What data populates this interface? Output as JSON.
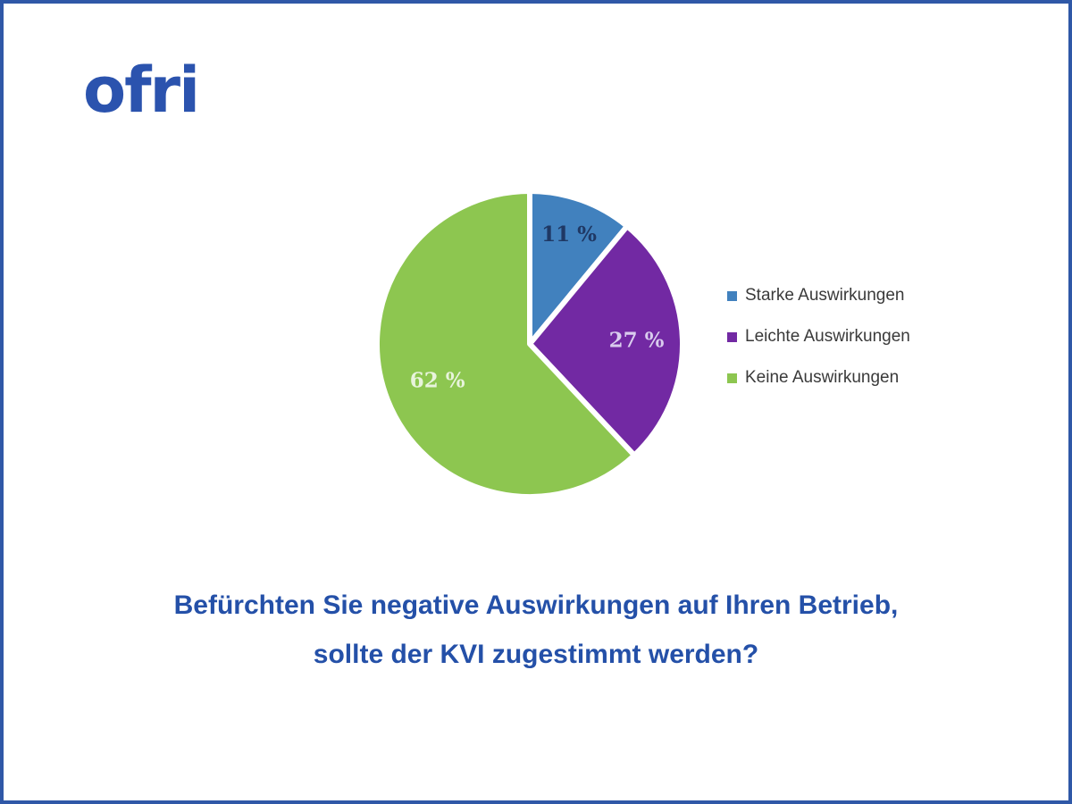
{
  "brand": {
    "logo_text": "ofri",
    "logo_color": "#2b53ae"
  },
  "frame": {
    "border_color": "#2f58a7",
    "background_color": "#ffffff"
  },
  "question": {
    "line1": "Befürchten Sie negative Auswirkungen auf Ihren Betrieb,",
    "line2": "sollte der KVI zugestimmt werden?",
    "color": "#2450a8"
  },
  "chart_data": {
    "type": "pie",
    "title": "Befürchten Sie negative Auswirkungen auf Ihren Betrieb, sollte der KVI zugestimmt werden?",
    "categories": [
      "Starke Auswirkungen",
      "Leichte Auswirkungen",
      "Keine Auswirkungen"
    ],
    "values": [
      11,
      27,
      62
    ],
    "unit": "%",
    "data_labels": [
      "11 %",
      "27 %",
      "62 %"
    ],
    "slice_colors": [
      "#4181be",
      "#7229a3",
      "#8dc650"
    ],
    "data_label_colors": [
      "#1f3864",
      "#d9ccee",
      "#e8f4dc"
    ],
    "slice_border_color": "#ffffff",
    "start_angle_deg": 0,
    "direction": "clockwise",
    "legend_position": "right",
    "legend_text_color": "#3a3a3a"
  }
}
